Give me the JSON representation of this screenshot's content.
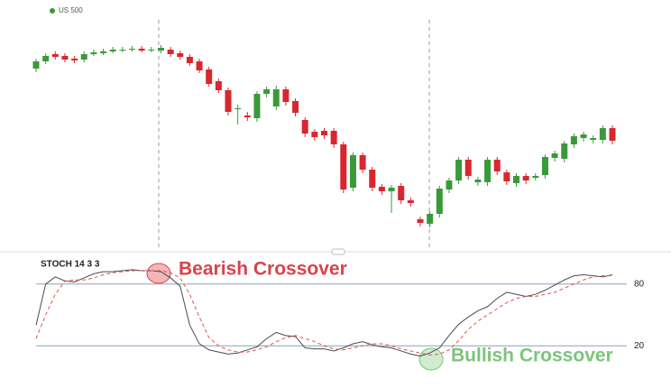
{
  "chart_data": [
    {
      "type": "candlestick",
      "legend": "US 500",
      "legend_color": "#3a9a3a",
      "up_color": "#3a9a3a",
      "down_color": "#d9262f",
      "ylim": [
        25,
        290
      ],
      "open": [
        224,
        232,
        240,
        238,
        235,
        234,
        240,
        241,
        243,
        244,
        245,
        246,
        245,
        244,
        245,
        241,
        237,
        232,
        223,
        210,
        200,
        180,
        172,
        169,
        196,
        182,
        201,
        188,
        167,
        154,
        155,
        155,
        140,
        92,
        128,
        112,
        93,
        88,
        94,
        78,
        57,
        52,
        63,
        90,
        100,
        123,
        98,
        98,
        123,
        109,
        97,
        105,
        103,
        106,
        125,
        124,
        140,
        147,
        145,
        145,
        158
      ],
      "high": [
        235,
        241,
        243,
        241,
        238,
        243,
        245,
        246,
        248,
        248,
        249,
        249,
        248,
        250,
        248,
        244,
        240,
        235,
        226,
        213,
        203,
        184,
        176,
        199,
        204,
        205,
        204,
        191,
        170,
        157,
        158,
        158,
        143,
        131,
        131,
        115,
        96,
        95,
        97,
        81,
        60,
        66,
        94,
        103,
        126,
        126,
        104,
        126,
        126,
        112,
        108,
        108,
        108,
        129,
        133,
        144,
        152,
        154,
        150,
        161,
        161
      ],
      "low": [
        220,
        229,
        234,
        231,
        230,
        231,
        238,
        239,
        241,
        242,
        243,
        242,
        242,
        241,
        237,
        234,
        227,
        219,
        204,
        197,
        172,
        162,
        166,
        165,
        192,
        178,
        183,
        171,
        148,
        144,
        146,
        136,
        86,
        88,
        108,
        88,
        84,
        64,
        74,
        71,
        49,
        48,
        59,
        86,
        96,
        101,
        94,
        94,
        106,
        95,
        93,
        96,
        100,
        102,
        121,
        120,
        136,
        143,
        141,
        141,
        140
      ],
      "close": [
        232,
        238,
        237,
        234,
        233,
        240,
        242,
        243,
        245,
        245,
        246,
        244,
        245,
        247,
        240,
        237,
        230,
        222,
        207,
        200,
        176,
        180,
        170,
        196,
        201,
        201,
        187,
        175,
        152,
        148,
        150,
        140,
        90,
        128,
        112,
        92,
        88,
        92,
        78,
        75,
        53,
        63,
        91,
        100,
        123,
        105,
        101,
        123,
        110,
        99,
        105,
        100,
        105,
        126,
        130,
        141,
        149,
        151,
        147,
        158,
        144
      ]
    },
    {
      "type": "line",
      "title": "STOCH 14 3 3",
      "ylim": [
        -21,
        107
      ],
      "yticks": [
        80,
        20
      ],
      "series": [
        {
          "color": "#4a4a55",
          "style": "solid",
          "values": [
            40,
            80,
            87,
            83,
            82,
            86,
            90,
            92,
            92,
            93,
            94,
            93,
            93,
            92,
            86,
            78,
            40,
            22,
            16,
            14,
            12,
            13,
            16,
            19,
            27,
            33,
            30,
            29,
            18,
            17,
            17,
            15,
            18,
            22,
            24,
            21,
            19,
            18,
            15,
            12,
            10,
            13,
            18,
            30,
            41,
            48,
            54,
            58,
            66,
            72,
            70,
            68,
            70,
            74,
            79,
            84,
            88,
            89,
            88,
            87,
            89
          ]
        },
        {
          "color": "#e05555",
          "style": "dashed",
          "values": [
            27,
            50,
            70,
            83,
            84,
            84,
            86,
            89,
            91,
            92,
            93,
            93,
            93,
            93,
            91,
            86,
            70,
            48,
            28,
            20,
            16,
            14,
            14,
            16,
            19,
            24,
            28,
            30,
            27,
            24,
            20,
            17,
            16,
            18,
            20,
            22,
            22,
            20,
            17,
            15,
            13,
            11,
            12,
            16,
            25,
            36,
            44,
            50,
            56,
            62,
            66,
            68,
            68,
            70,
            72,
            76,
            80,
            84,
            87,
            88,
            88
          ]
        }
      ],
      "annotations": [
        {
          "text": "Bearish Crossover",
          "color": "#d9434a"
        },
        {
          "text": "Bullish Crossover",
          "color": "#7cc47c"
        }
      ]
    }
  ]
}
